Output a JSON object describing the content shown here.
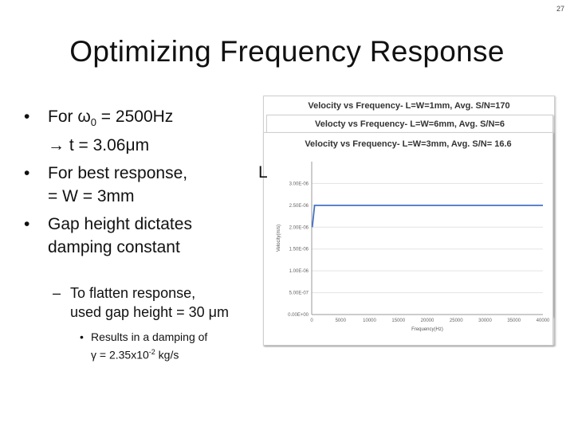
{
  "slide_number": "27",
  "title": "Optimizing Frequency Response",
  "bullets": {
    "b1_prefix": "For ω",
    "b1_sub": "0",
    "b1_suffix": " = 2500Hz",
    "b1_line2": "→ t = 3.06μm",
    "b2_line1": "For best response,",
    "b2_cut": "L",
    "b2_line2": "= W = 3mm",
    "b3_line1": "Gap height dictates",
    "b3_line2": "damping constant",
    "sub_line1": "To flatten response,",
    "sub_line2": "used gap height = 30 μm",
    "subsub_line1": "Results in a damping of",
    "subsub_prefix": "γ = 2.35x10",
    "subsub_sup": "-2",
    "subsub_suffix": " kg/s"
  },
  "charts": {
    "title_1": "Velocity vs Frequency- L=W=1mm, Avg. S/N=170",
    "title_2": "Velocty vs Frequency- L=W=6mm, Avg. S/N=6",
    "title_3": "Velocity vs Frequency- L=W=3mm, Avg. S/N= 16.6"
  },
  "chart_data": {
    "type": "line",
    "title": "Velocity vs Frequency- L=W=3mm, Avg. S/N= 16.6",
    "xlabel": "Frequency(Hz)",
    "ylabel": "Velocity(m/s)",
    "xlim": [
      0,
      40000
    ],
    "ylim": [
      0,
      3.5e-06
    ],
    "x_ticks": [
      "0",
      "5000",
      "10000",
      "15000",
      "20000",
      "25000",
      "30000",
      "35000",
      "40000"
    ],
    "y_ticks": [
      "0.00E+00",
      "5.00E-07",
      "1.00E-06",
      "1.50E-06",
      "2.00E-06",
      "2.50E-06",
      "3.00E-06"
    ],
    "series": [
      {
        "x": [
          100,
          500,
          1000,
          5000,
          10000,
          15000,
          20000,
          25000,
          30000,
          35000,
          40000
        ],
        "y": [
          2e-06,
          2.5e-06,
          2.5e-06,
          2.5e-06,
          2.5e-06,
          2.5e-06,
          2.5e-06,
          2.5e-06,
          2.5e-06,
          2.5e-06,
          2.5e-06
        ]
      }
    ],
    "colors": {
      "line": "#4472c4"
    }
  }
}
